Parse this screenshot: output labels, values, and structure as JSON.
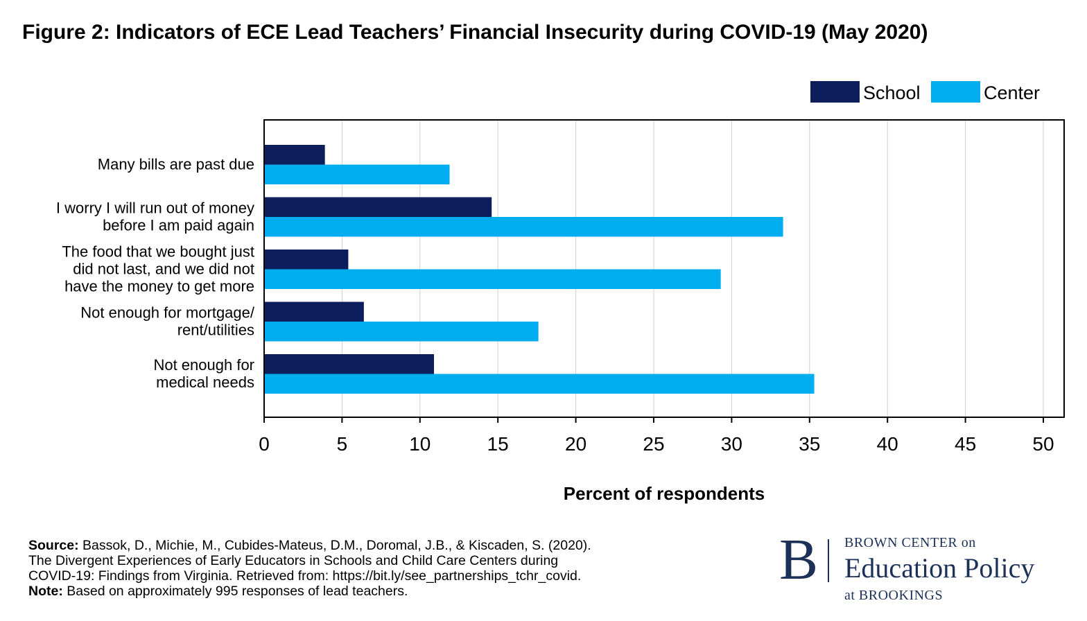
{
  "title": "Figure 2: Indicators of ECE Lead Teachers’ Financial Insecurity during COVID-19 (May 2020)",
  "chart_data": {
    "type": "bar",
    "orientation": "horizontal",
    "categories": [
      [
        "Many bills are past due"
      ],
      [
        "I worry I will run out of money",
        "before I am paid again"
      ],
      [
        "The food that we bought just",
        "did not last, and we did not",
        "have the money to get more"
      ],
      [
        "Not enough for mortgage/",
        "rent/utilities"
      ],
      [
        "Not enough for",
        "medical needs"
      ]
    ],
    "series": [
      {
        "name": "School",
        "color": "#0c1f5c",
        "values": [
          3.9,
          14.6,
          5.4,
          6.4,
          10.9
        ]
      },
      {
        "name": "Center",
        "color": "#00aeef",
        "values": [
          11.9,
          33.3,
          29.3,
          17.6,
          35.3
        ]
      }
    ],
    "xlabel": "Percent of respondents",
    "ylabel": "",
    "xlim": [
      0,
      50
    ],
    "xticks": [
      "0",
      "5",
      "10",
      "15",
      "20",
      "25",
      "30",
      "35",
      "40",
      "45",
      "50"
    ],
    "grid": true,
    "legend_position": "top-right"
  },
  "footer": {
    "source_label": "Source:",
    "source_lines": [
      "Bassok, D., Michie, M., Cubides-Mateus, D.M., Doromal, J.B., & Kiscaden, S. (2020).",
      "The Divergent Experiences of Early Educators in Schools and Child Care Centers during",
      "COVID-19: Findings from Virginia. Retrieved from: https://bit.ly/see_partnerships_tchr_covid."
    ],
    "note_label": "Note:",
    "note_text": "Based on approximately 995 responses of lead teachers."
  },
  "logo": {
    "letter": "B",
    "line1": "BROWN CENTER on",
    "line2": "Education Policy",
    "line3": "at BROOKINGS"
  }
}
